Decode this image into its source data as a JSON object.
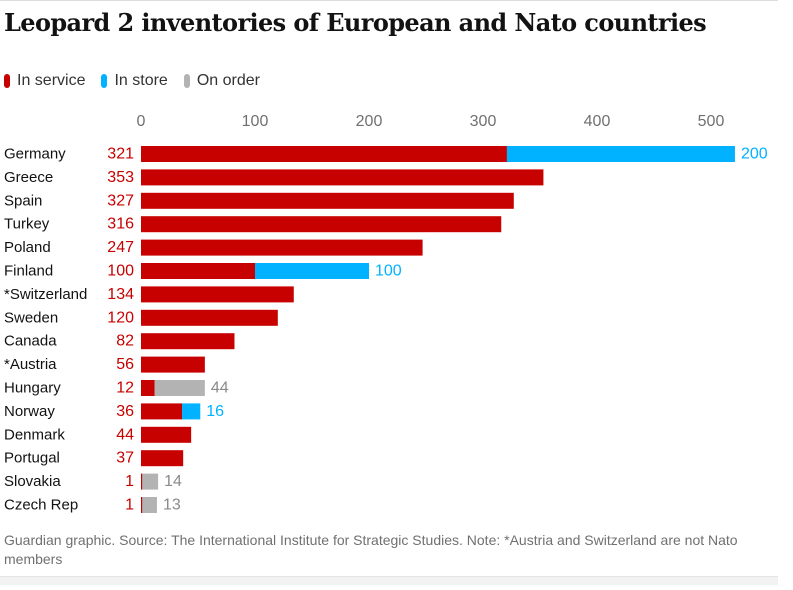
{
  "title": "Leopard 2 inventories of European and Nato countries",
  "legend": [
    {
      "label": "In service",
      "color": "#c70000"
    },
    {
      "label": "In store",
      "color": "#00b2ff"
    },
    {
      "label": "On order",
      "color": "#b3b3b3"
    }
  ],
  "source": "Guardian graphic. Source: The International Institute for Strategic Studies. Note: *Austria and Switzerland are not Nato members",
  "chart_data": {
    "type": "bar",
    "orientation": "horizontal",
    "stacked": true,
    "xlim": [
      0,
      520
    ],
    "ticks": [
      0,
      100,
      200,
      300,
      400,
      500
    ],
    "grid": false,
    "legend_position": "top-left",
    "categories": [
      "Germany",
      "Greece",
      "Spain",
      "Turkey",
      "Poland",
      "Finland",
      "*Switzerland",
      "Sweden",
      "Canada",
      "*Austria",
      "Hungary",
      "Norway",
      "Denmark",
      "Portugal",
      "Slovakia",
      "Czech Rep"
    ],
    "series": [
      {
        "name": "In service",
        "color": "#c70000",
        "values": [
          321,
          353,
          327,
          316,
          247,
          100,
          134,
          120,
          82,
          56,
          12,
          36,
          44,
          37,
          1,
          1
        ]
      },
      {
        "name": "In store",
        "color": "#00b2ff",
        "values": [
          200,
          0,
          0,
          0,
          0,
          100,
          0,
          0,
          0,
          0,
          0,
          16,
          0,
          0,
          0,
          0
        ]
      },
      {
        "name": "On order",
        "color": "#b3b3b3",
        "values": [
          0,
          0,
          0,
          0,
          0,
          0,
          0,
          0,
          0,
          0,
          44,
          0,
          0,
          0,
          14,
          13
        ]
      }
    ]
  }
}
